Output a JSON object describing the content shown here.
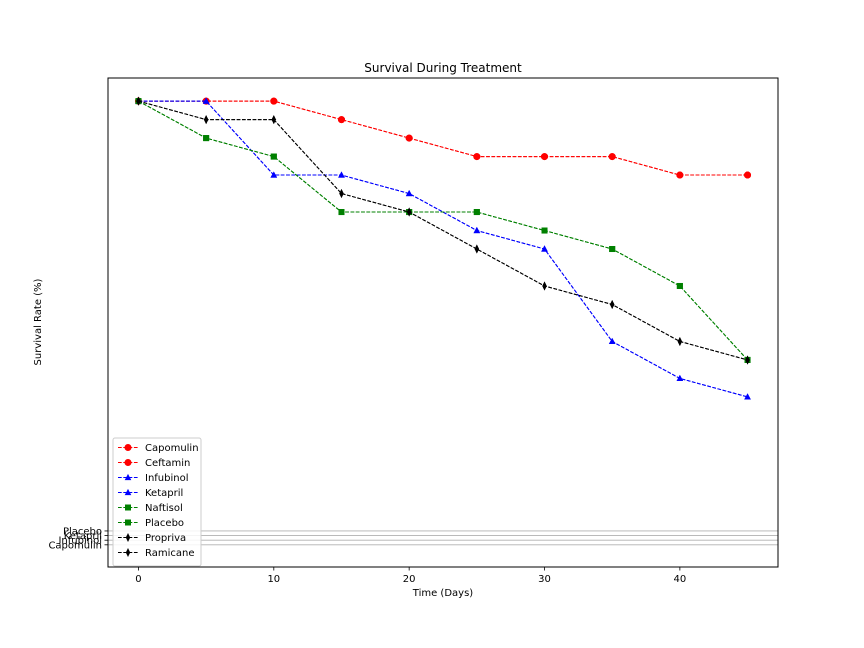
{
  "chart_data": {
    "type": "line",
    "title": "Survival During Treatment",
    "xlabel": "Time (Days)",
    "ylabel": "Survival Rate (%)",
    "x": [
      0,
      5,
      10,
      15,
      20,
      25,
      30,
      35,
      40,
      45
    ],
    "xlim": [
      -2.25,
      47.25
    ],
    "ylim": [
      -1.2,
      25.25
    ],
    "xticks": [
      "0",
      "10",
      "20",
      "30",
      "40"
    ],
    "xtick_values": [
      0,
      10,
      20,
      30,
      40
    ],
    "grid": false,
    "legend_position": "lower-left",
    "series": [
      {
        "name": "Capomulin",
        "color": "#ff0000",
        "marker": "circle",
        "values": [
          24,
          24,
          24,
          23,
          22,
          21,
          21,
          21,
          20,
          20
        ]
      },
      {
        "name": "Ceftamin",
        "color": "#ff0000",
        "marker": "circle",
        "values": [
          24,
          24,
          24,
          23,
          22,
          21,
          21,
          21,
          20,
          20
        ]
      },
      {
        "name": "Infubinol",
        "color": "#0000ff",
        "marker": "triangle",
        "values": [
          24,
          24,
          20,
          20,
          19,
          17,
          16,
          11,
          9,
          8
        ]
      },
      {
        "name": "Ketapril",
        "color": "#0000ff",
        "marker": "triangle",
        "values": [
          24,
          24,
          20,
          20,
          19,
          17,
          16,
          11,
          9,
          8
        ]
      },
      {
        "name": "Naftisol",
        "color": "#008000",
        "marker": "square",
        "values": [
          24,
          22,
          21,
          18,
          18,
          18,
          17,
          16,
          14,
          10
        ]
      },
      {
        "name": "Placebo",
        "color": "#008000",
        "marker": "square",
        "values": [
          24,
          22,
          21,
          18,
          18,
          18,
          17,
          16,
          14,
          10
        ]
      },
      {
        "name": "Propriva",
        "color": "#000000",
        "marker": "thin-diamond",
        "values": [
          24,
          23,
          23,
          19,
          18,
          16,
          14,
          13,
          11,
          10
        ]
      },
      {
        "name": "Ramicane",
        "color": "#000000",
        "marker": "thin-diamond",
        "values": [
          24,
          23,
          23,
          19,
          18,
          16,
          14,
          13,
          11,
          10
        ]
      }
    ],
    "categorical_yticks": [
      {
        "label": "Capomulin",
        "value": 0
      },
      {
        "label": "Infubinol",
        "value": 0.25
      },
      {
        "label": "Ketapril",
        "value": 0.5
      },
      {
        "label": "Placebo",
        "value": 0.75
      }
    ]
  }
}
